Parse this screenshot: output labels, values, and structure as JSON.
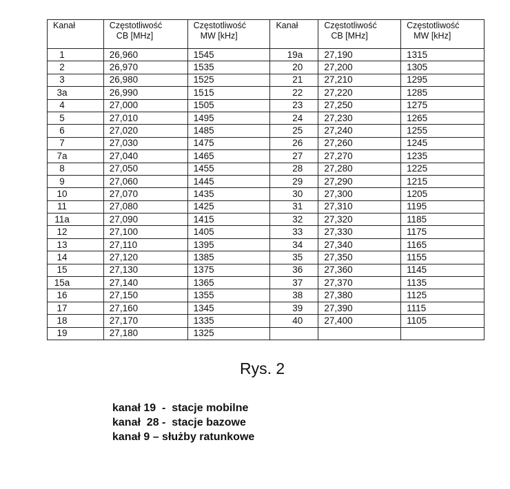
{
  "table": {
    "headers": [
      {
        "line1": "Kanał",
        "line2": ""
      },
      {
        "line1": "Częstotliwość",
        "line2": "CB [MHz]"
      },
      {
        "line1": "Częstotliwość",
        "line2": "MW [kHz]"
      },
      {
        "line1": "Kanał",
        "line2": ""
      },
      {
        "line1": "Częstotliwość",
        "line2": "CB [MHz]"
      },
      {
        "line1": "Częstotliwość",
        "line2": "MW [kHz]"
      }
    ],
    "rows": [
      [
        "1",
        "26,960",
        "1545",
        "19a",
        "27,190",
        "1315"
      ],
      [
        "2",
        "26,970",
        "1535",
        "20",
        "27,200",
        "1305"
      ],
      [
        "3",
        "26,980",
        "1525",
        "21",
        "27,210",
        "1295"
      ],
      [
        "3a",
        "26,990",
        "1515",
        "22",
        "27,220",
        "1285"
      ],
      [
        "4",
        "27,000",
        "1505",
        "23",
        "27,250",
        "1275"
      ],
      [
        "5",
        "27,010",
        "1495",
        "24",
        "27,230",
        "1265"
      ],
      [
        "6",
        "27,020",
        "1485",
        "25",
        "27,240",
        "1255"
      ],
      [
        "7",
        "27,030",
        "1475",
        "26",
        "27,260",
        "1245"
      ],
      [
        "7a",
        "27,040",
        "1465",
        "27",
        "27,270",
        "1235"
      ],
      [
        "8",
        "27,050",
        "1455",
        "28",
        "27,280",
        "1225"
      ],
      [
        "9",
        "27,060",
        "1445",
        "29",
        "27,290",
        "1215"
      ],
      [
        "10",
        "27,070",
        "1435",
        "30",
        "27,300",
        "1205"
      ],
      [
        "11",
        "27,080",
        "1425",
        "31",
        "27,310",
        "1195"
      ],
      [
        "11a",
        "27,090",
        "1415",
        "32",
        "27,320",
        "1185"
      ],
      [
        "12",
        "27,100",
        "1405",
        "33",
        "27,330",
        "1175"
      ],
      [
        "13",
        "27,110",
        "1395",
        "34",
        "27,340",
        "1165"
      ],
      [
        "14",
        "27,120",
        "1385",
        "35",
        "27,350",
        "1155"
      ],
      [
        "15",
        "27,130",
        "1375",
        "36",
        "27,360",
        "1145"
      ],
      [
        "15a",
        "27,140",
        "1365",
        "37",
        "27,370",
        "1135"
      ],
      [
        "16",
        "27,150",
        "1355",
        "38",
        "27,380",
        "1125"
      ],
      [
        "17",
        "27,160",
        "1345",
        "39",
        "27,390",
        "1115"
      ],
      [
        "18",
        "27,170",
        "1335",
        "40",
        "27,400",
        "1105"
      ],
      [
        "19",
        "27,180",
        "1325",
        "",
        "",
        ""
      ]
    ]
  },
  "caption": "Rys. 2",
  "notes": [
    "kanał 19  -  stacje mobilne",
    "kanał  28 -  stacje bazowe",
    "kanał 9 – służby ratunkowe"
  ]
}
